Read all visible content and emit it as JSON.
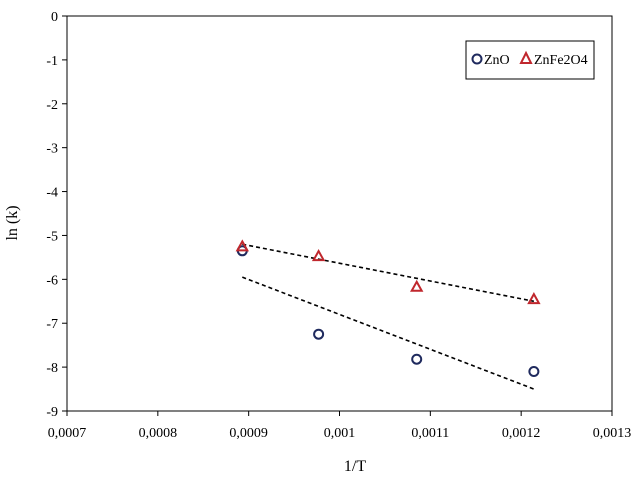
{
  "chart_data": {
    "type": "scatter",
    "title": "",
    "xlabel": "1/T",
    "ylabel": "ln (k)",
    "xlim": [
      0.0007,
      0.0013
    ],
    "ylim": [
      -9,
      0
    ],
    "x_ticks": [
      {
        "value": 0.0007,
        "label": "0,0007"
      },
      {
        "value": 0.0008,
        "label": "0,0008"
      },
      {
        "value": 0.0009,
        "label": "0,0009"
      },
      {
        "value": 0.001,
        "label": "0,001"
      },
      {
        "value": 0.0011,
        "label": "0,0011"
      },
      {
        "value": 0.0012,
        "label": "0,0012"
      },
      {
        "value": 0.0013,
        "label": "0,0013"
      }
    ],
    "y_ticks": [
      {
        "value": 0,
        "label": "0"
      },
      {
        "value": -1,
        "label": "-1"
      },
      {
        "value": -2,
        "label": "-2"
      },
      {
        "value": -3,
        "label": "-3"
      },
      {
        "value": -4,
        "label": "-4"
      },
      {
        "value": -5,
        "label": "-5"
      },
      {
        "value": -6,
        "label": "-6"
      },
      {
        "value": -7,
        "label": "-7"
      },
      {
        "value": -8,
        "label": "-8"
      },
      {
        "value": -9,
        "label": "-9"
      }
    ],
    "grid": false,
    "legend_position": "top-right",
    "series": [
      {
        "name": "ZnO",
        "marker": "circle",
        "color": "#1f2a5e",
        "x": [
          0.000893,
          0.000977,
          0.001085,
          0.001214
        ],
        "y": [
          -5.35,
          -7.25,
          -7.82,
          -8.1
        ],
        "trendline": {
          "x": [
            0.000893,
            0.001214
          ],
          "y": [
            -5.95,
            -8.5
          ]
        }
      },
      {
        "name": "ZnFe2O4",
        "marker": "triangle",
        "color": "#c0272d",
        "x": [
          0.000893,
          0.000977,
          0.001085,
          0.001214
        ],
        "y": [
          -5.25,
          -5.47,
          -6.17,
          -6.45
        ],
        "trendline": {
          "x": [
            0.000893,
            0.001214
          ],
          "y": [
            -5.2,
            -6.5
          ]
        }
      }
    ]
  }
}
